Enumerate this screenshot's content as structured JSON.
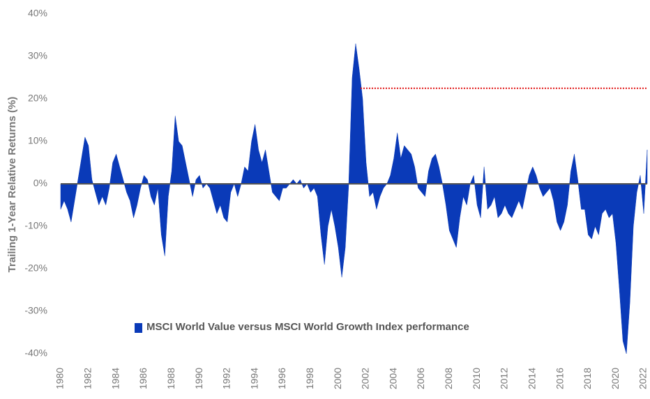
{
  "chart_data": {
    "type": "area",
    "y_label": "Trailing 1-Year Relative Returns (%)",
    "legend": "lower center",
    "xlim": [
      1980,
      2022.25
    ],
    "xticks": [
      1980,
      1982,
      1984,
      1986,
      1988,
      1990,
      1992,
      1994,
      1996,
      1998,
      2000,
      2002,
      2004,
      2006,
      2008,
      2010,
      2012,
      2014,
      2016,
      2018,
      2020,
      2022
    ],
    "ylim": [
      -40,
      40
    ],
    "yticks": [
      {
        "value": -40,
        "label": "-40%"
      },
      {
        "value": -30,
        "label": "-30%"
      },
      {
        "value": -20,
        "label": "-20%"
      },
      {
        "value": -10,
        "label": "-10%"
      },
      {
        "value": 0,
        "label": "0%"
      },
      {
        "value": 10,
        "label": "10%"
      },
      {
        "value": 20,
        "label": "20%"
      },
      {
        "value": 30,
        "label": "30%"
      },
      {
        "value": 40,
        "label": "40%"
      }
    ],
    "reference_line": {
      "y": 22.5,
      "x": [
        2001.6,
        2022.25
      ],
      "color": "#e01010"
    },
    "x": [
      1980,
      1980.25,
      1980.5,
      1980.75,
      1981,
      1981.25,
      1981.5,
      1981.75,
      1982,
      1982.25,
      1982.5,
      1982.75,
      1983,
      1983.25,
      1983.5,
      1983.75,
      1984,
      1984.25,
      1984.5,
      1984.75,
      1985,
      1985.25,
      1985.5,
      1985.75,
      1986,
      1986.25,
      1986.5,
      1986.75,
      1987,
      1987.25,
      1987.5,
      1987.75,
      1988,
      1988.25,
      1988.5,
      1988.75,
      1989,
      1989.25,
      1989.5,
      1989.75,
      1990,
      1990.25,
      1990.5,
      1990.75,
      1991,
      1991.25,
      1991.5,
      1991.75,
      1992,
      1992.25,
      1992.5,
      1992.75,
      1993,
      1993.25,
      1993.5,
      1993.75,
      1994,
      1994.25,
      1994.5,
      1994.75,
      1995,
      1995.25,
      1995.5,
      1995.75,
      1996,
      1996.25,
      1996.5,
      1996.75,
      1997,
      1997.25,
      1997.5,
      1997.75,
      1998,
      1998.25,
      1998.5,
      1998.75,
      1999,
      1999.25,
      1999.5,
      1999.75,
      2000,
      2000.25,
      2000.5,
      2000.75,
      2001,
      2001.25,
      2001.5,
      2001.75,
      2002,
      2002.25,
      2002.5,
      2002.75,
      2003,
      2003.25,
      2003.5,
      2003.75,
      2004,
      2004.25,
      2004.5,
      2004.75,
      2005,
      2005.25,
      2005.5,
      2005.75,
      2006,
      2006.25,
      2006.5,
      2006.75,
      2007,
      2007.25,
      2007.5,
      2007.75,
      2008,
      2008.25,
      2008.5,
      2008.75,
      2009,
      2009.25,
      2009.5,
      2009.75,
      2010,
      2010.25,
      2010.5,
      2010.75,
      2011,
      2011.25,
      2011.5,
      2011.75,
      2012,
      2012.25,
      2012.5,
      2012.75,
      2013,
      2013.25,
      2013.5,
      2013.75,
      2014,
      2014.25,
      2014.5,
      2014.75,
      2015,
      2015.25,
      2015.5,
      2015.75,
      2016,
      2016.25,
      2016.5,
      2016.75,
      2017,
      2017.25,
      2017.5,
      2017.75,
      2018,
      2018.25,
      2018.5,
      2018.75,
      2019,
      2019.25,
      2019.5,
      2019.75,
      2020,
      2020.25,
      2020.5,
      2020.75,
      2021,
      2021.25,
      2021.5,
      2021.75,
      2022,
      2022.25
    ],
    "series": [
      {
        "name": "MSCI World Value versus MSCI World Growth Index performance",
        "color": "#0a3ab8",
        "values": [
          -6,
          -4,
          -6,
          -9,
          -4,
          1,
          6,
          11,
          9,
          1,
          -2,
          -5,
          -3,
          -5,
          -1,
          5,
          7,
          4,
          1,
          -2,
          -4,
          -8,
          -5,
          -1,
          2,
          1,
          -3,
          -5,
          -1,
          -12,
          -17,
          -3,
          3,
          16,
          10,
          9,
          5,
          1,
          -3,
          1,
          2,
          -1,
          0,
          -1,
          -4,
          -7,
          -5,
          -8,
          -9,
          -2,
          0,
          -3,
          0,
          4,
          3,
          10,
          14,
          8,
          5,
          8,
          3,
          -2,
          -3,
          -4,
          -1,
          -1,
          0,
          1,
          0,
          1,
          -1,
          0,
          -2,
          -1,
          -3,
          -12,
          -19,
          -10,
          -6,
          -10,
          -15,
          -22,
          -15,
          0,
          25,
          33,
          27,
          20,
          5,
          -3,
          -2,
          -6,
          -3,
          -1,
          0,
          2,
          6,
          12,
          6,
          9,
          8,
          7,
          4,
          -1,
          -2,
          -3,
          3,
          6,
          7,
          4,
          0,
          -5,
          -11,
          -13,
          -15,
          -8,
          -3,
          -5,
          0,
          2,
          -5,
          -8,
          4,
          -6,
          -5,
          -3,
          -8,
          -7,
          -5,
          -7,
          -8,
          -6,
          -4,
          -6,
          -2,
          2,
          4,
          2,
          -1,
          -3,
          -2,
          -1,
          -4,
          -9,
          -11,
          -9,
          -5,
          3,
          7,
          1,
          -6,
          -6,
          -12,
          -13,
          -10,
          -12,
          -7,
          -6,
          -8,
          -7,
          -14,
          -25,
          -37,
          -40,
          -28,
          -10,
          -2,
          2,
          -7,
          8
        ]
      }
    ]
  }
}
